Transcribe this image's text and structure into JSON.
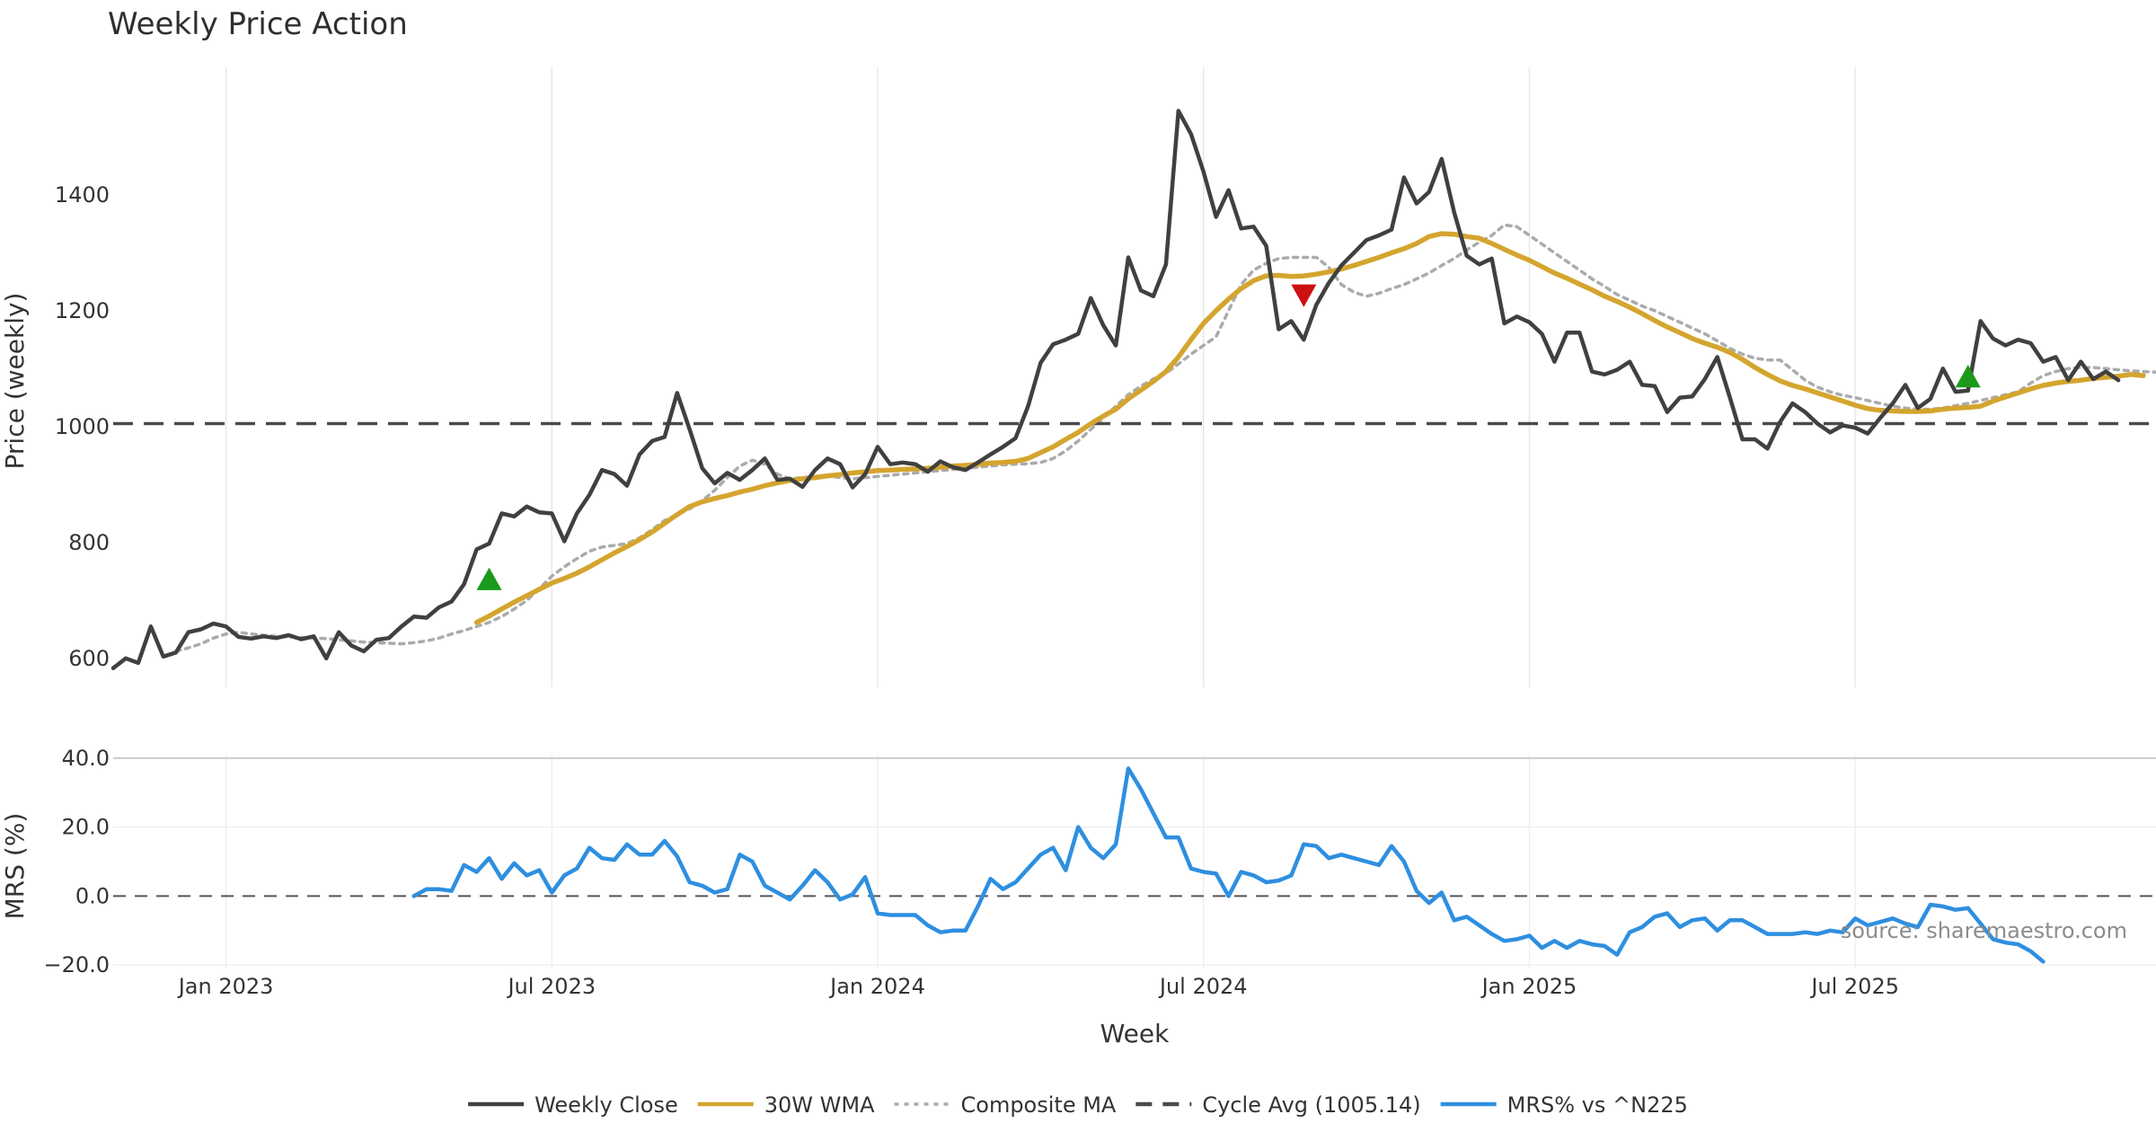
{
  "chart_data": {
    "type": "line",
    "title": "Weekly Price Action",
    "xlabel": "Week",
    "watermark": "source: sharemaestro.com",
    "x_ticks": [
      {
        "label": "Jan 2023",
        "week": 10
      },
      {
        "label": "Jul 2023",
        "week": 36
      },
      {
        "label": "Jan 2024",
        "week": 62
      },
      {
        "label": "Jul 2024",
        "week": 88
      },
      {
        "label": "Jan 2025",
        "week": 114
      },
      {
        "label": "Jul 2025",
        "week": 140
      }
    ],
    "x_range": [
      1,
      164
    ],
    "price_panel": {
      "ylabel": "Price (weekly)",
      "ylim": [
        550,
        1620
      ],
      "yticks": [
        600,
        800,
        1000,
        1200,
        1400
      ],
      "grid": true
    },
    "mrs_panel": {
      "ylabel": "MRS (%)",
      "ylim": [
        -21,
        41
      ],
      "yticks": [
        -20,
        0,
        20,
        40
      ],
      "ytick_labels": [
        "−20.0",
        "0.0",
        "20.0",
        "40.0"
      ],
      "zero_line": 0
    },
    "reference_line": {
      "value": 1005.14
    },
    "series": [
      {
        "name": "Weekly Close",
        "color": "#404040",
        "style": "solid",
        "panel": "price",
        "start_week": 1,
        "values": [
          583,
          600,
          592,
          655,
          603,
          610,
          645,
          650,
          660,
          655,
          637,
          634,
          638,
          635,
          640,
          633,
          638,
          600,
          645,
          622,
          612,
          632,
          635,
          655,
          672,
          670,
          688,
          698,
          728,
          788,
          798,
          850,
          845,
          862,
          852,
          850,
          802,
          850,
          882,
          925,
          918,
          898,
          952,
          975,
          982,
          1058,
          995,
          928,
          902,
          920,
          908,
          925,
          945,
          908,
          910,
          896,
          925,
          945,
          935,
          895,
          918,
          965,
          935,
          938,
          935,
          922,
          940,
          930,
          925,
          938,
          952,
          965,
          980,
          1035,
          1110,
          1142,
          1150,
          1160,
          1222,
          1175,
          1140,
          1292,
          1235,
          1225,
          1280,
          1545,
          1505,
          1440,
          1362,
          1408,
          1342,
          1345,
          1312,
          1168,
          1182,
          1150,
          1210,
          1248,
          1278,
          1300,
          1322,
          1330,
          1340,
          1430,
          1385,
          1405,
          1462,
          1370,
          1295,
          1280,
          1290,
          1178,
          1190,
          1180,
          1160,
          1112,
          1162,
          1162,
          1095,
          1090,
          1098,
          1112,
          1072,
          1070,
          1025,
          1050,
          1052,
          1082,
          1120,
          1050,
          978,
          978,
          962,
          1008,
          1040,
          1025,
          1005,
          990,
          1002,
          998,
          988,
          1015,
          1040,
          1072,
          1032,
          1048,
          1100,
          1060,
          1062,
          1182,
          1152,
          1140,
          1150,
          1144,
          1112,
          1120,
          1080,
          1112,
          1082,
          1095,
          1080
        ]
      },
      {
        "name": "30W WMA",
        "color": "#d4a52e",
        "style": "solid",
        "panel": "price",
        "start_week": 30,
        "values": [
          662,
          673,
          685,
          697,
          708,
          719,
          730,
          738,
          747,
          758,
          770,
          782,
          793,
          805,
          818,
          833,
          848,
          862,
          870,
          876,
          881,
          887,
          892,
          898,
          903,
          907,
          910,
          912,
          915,
          917,
          920,
          922,
          924,
          925,
          926,
          927,
          928,
          930,
          932,
          933,
          935,
          937,
          938,
          940,
          945,
          955,
          965,
          978,
          990,
          1005,
          1018,
          1030,
          1048,
          1063,
          1078,
          1095,
          1120,
          1150,
          1178,
          1200,
          1220,
          1238,
          1252,
          1260,
          1261,
          1259,
          1260,
          1263,
          1267,
          1272,
          1278,
          1285,
          1292,
          1300,
          1307,
          1316,
          1328,
          1333,
          1332,
          1328,
          1325,
          1316,
          1306,
          1296,
          1287,
          1276,
          1265,
          1256,
          1246,
          1236,
          1225,
          1216,
          1206,
          1195,
          1183,
          1172,
          1162,
          1152,
          1144,
          1137,
          1128,
          1116,
          1102,
          1090,
          1079,
          1071,
          1065,
          1058,
          1051,
          1044,
          1037,
          1031,
          1028,
          1027,
          1026,
          1026,
          1027,
          1030,
          1032,
          1033,
          1035,
          1044,
          1051,
          1058,
          1065,
          1071,
          1075,
          1078,
          1080,
          1083,
          1085,
          1087,
          1090,
          1088
        ]
      },
      {
        "name": "Composite MA",
        "color": "#ababab",
        "style": "dotted",
        "panel": "price",
        "start_week": 6,
        "values": [
          612,
          618,
          625,
          635,
          642,
          645,
          642,
          640,
          638,
          637,
          636,
          635,
          634,
          632,
          630,
          628,
          627,
          626,
          625,
          627,
          630,
          635,
          642,
          648,
          655,
          662,
          672,
          685,
          700,
          720,
          742,
          758,
          772,
          785,
          792,
          795,
          798,
          808,
          822,
          838,
          848,
          858,
          872,
          890,
          912,
          932,
          942,
          935,
          918,
          910,
          912,
          914,
          915,
          912,
          910,
          912,
          914,
          916,
          918,
          920,
          922,
          924,
          926,
          928,
          930,
          932,
          934,
          935,
          936,
          938,
          945,
          958,
          975,
          995,
          1015,
          1035,
          1055,
          1070,
          1082,
          1092,
          1108,
          1125,
          1140,
          1155,
          1200,
          1245,
          1270,
          1282,
          1290,
          1292,
          1292,
          1292,
          1275,
          1245,
          1232,
          1225,
          1230,
          1238,
          1245,
          1255,
          1265,
          1278,
          1290,
          1305,
          1318,
          1330,
          1348,
          1345,
          1330,
          1315,
          1300,
          1285,
          1270,
          1255,
          1242,
          1228,
          1218,
          1208,
          1200,
          1190,
          1180,
          1170,
          1160,
          1148,
          1135,
          1125,
          1118,
          1115,
          1115,
          1098,
          1080,
          1068,
          1060,
          1054,
          1050,
          1045,
          1040,
          1035,
          1032,
          1030,
          1030,
          1032,
          1036,
          1040,
          1045,
          1050,
          1055,
          1060,
          1075,
          1088,
          1095,
          1100,
          1102,
          1102,
          1100,
          1098,
          1096,
          1095,
          1094,
          1093,
          1092
        ]
      },
      {
        "name": "Cycle Avg (1005.14)",
        "color": "#4a4a4a",
        "style": "dashed",
        "panel": "price",
        "constant": 1005.14
      },
      {
        "name": "MRS% vs ^N225",
        "color": "#2e8fe0",
        "style": "solid",
        "panel": "mrs",
        "start_week": 25,
        "values": [
          0,
          2,
          2,
          1.5,
          9,
          7,
          11,
          5,
          9.5,
          6,
          7.5,
          1,
          6,
          8,
          14,
          11,
          10.5,
          15,
          12,
          12,
          16,
          11.5,
          4,
          3,
          1,
          2,
          12,
          10,
          3,
          1,
          -1,
          3,
          7.5,
          4,
          -1,
          0.5,
          5.5,
          -5,
          -5.5,
          -5.5,
          -5.5,
          -8.5,
          -10.5,
          -10,
          -10,
          -3,
          5,
          2,
          4,
          8,
          12,
          14,
          7.5,
          20,
          14,
          11,
          15,
          37,
          31,
          24,
          17,
          17,
          8,
          7,
          6.5,
          0,
          7,
          6,
          4,
          4.5,
          6,
          15,
          14.5,
          11,
          12,
          11,
          10,
          9,
          14.5,
          10,
          1.5,
          -2,
          1,
          -7,
          -6,
          -8.5,
          -11,
          -13,
          -12.5,
          -11.5,
          -15,
          -13,
          -15,
          -13,
          -14,
          -14.5,
          -17,
          -10.5,
          -9,
          -6,
          -5,
          -9,
          -7,
          -6.5,
          -10,
          -7,
          -7,
          -9,
          -11,
          -11,
          -11,
          -10.5,
          -11,
          -10,
          -10.5,
          -6.5,
          -8.5,
          -7.5,
          -6.5,
          -8,
          -9,
          -2.5,
          -3,
          -4,
          -3.5,
          -8,
          -12.5,
          -13.5,
          -14,
          -16,
          -19
        ]
      }
    ],
    "markers": [
      {
        "type": "buy",
        "symbol": "triangle-up",
        "week": 31,
        "value": 735,
        "color": "#1a9a1a"
      },
      {
        "type": "sell",
        "symbol": "triangle-down",
        "week": 96,
        "value": 1228,
        "color": "#cc1111"
      },
      {
        "type": "buy",
        "symbol": "triangle-up",
        "week": 149,
        "value": 1085,
        "color": "#1a9a1a"
      }
    ],
    "legend": {
      "position": "bottom-center",
      "items": [
        {
          "label": "Weekly Close",
          "color": "#404040",
          "style": "solid"
        },
        {
          "label": "30W WMA",
          "color": "#d4a52e",
          "style": "solid"
        },
        {
          "label": "Composite MA",
          "color": "#ababab",
          "style": "dotted"
        },
        {
          "label": "Cycle Avg (1005.14)",
          "color": "#4a4a4a",
          "style": "dashed"
        },
        {
          "label": "MRS% vs ^N225",
          "color": "#2e8fe0",
          "style": "solid"
        }
      ]
    }
  }
}
